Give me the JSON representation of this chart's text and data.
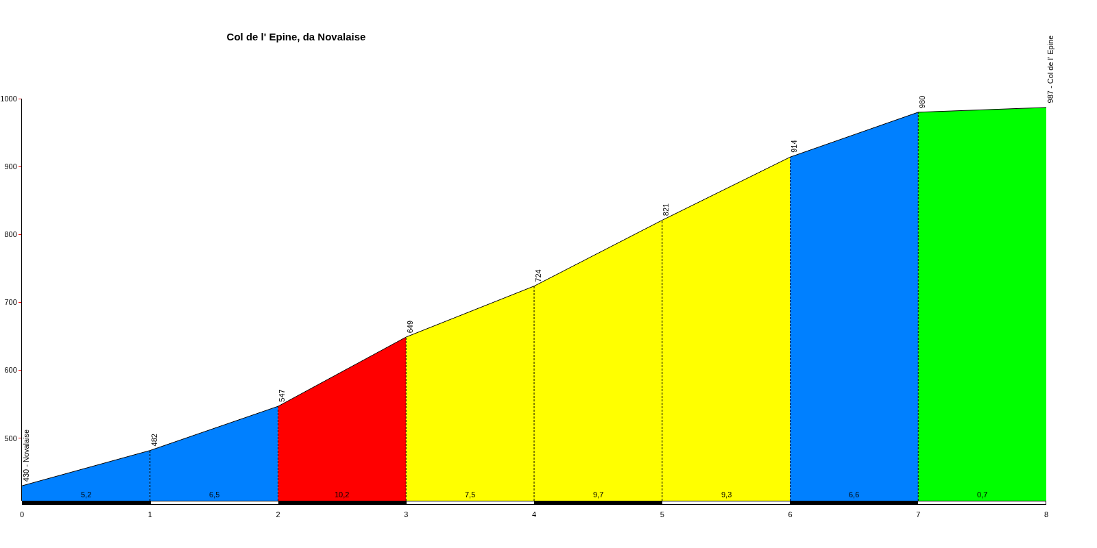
{
  "chart_data": {
    "type": "area",
    "title": "Col de l' Epine, da Novalaise",
    "xlim": [
      0,
      8
    ],
    "xticks": [
      0,
      1,
      2,
      3,
      4,
      5,
      6,
      7,
      8
    ],
    "ylim": [
      408,
      1000
    ],
    "yticks": [
      500,
      600,
      700,
      800,
      900,
      1000
    ],
    "grid": false,
    "series": [
      {
        "color": "#0080ff",
        "x": [
          0,
          1
        ],
        "values": [
          430,
          482
        ]
      },
      {
        "color": "#0080ff",
        "x": [
          1,
          2
        ],
        "values": [
          482,
          547
        ]
      },
      {
        "color": "#ff0000",
        "x": [
          2,
          3
        ],
        "values": [
          547,
          649
        ]
      },
      {
        "color": "#ffff00",
        "x": [
          3,
          4
        ],
        "values": [
          649,
          724
        ]
      },
      {
        "color": "#ffff00",
        "x": [
          4,
          5
        ],
        "values": [
          724,
          821
        ]
      },
      {
        "color": "#ffff00",
        "x": [
          5,
          6
        ],
        "values": [
          821,
          914
        ]
      },
      {
        "color": "#0080ff",
        "x": [
          6,
          7
        ],
        "values": [
          914,
          980
        ]
      },
      {
        "color": "#00ff00",
        "x": [
          7,
          8
        ],
        "values": [
          980,
          987
        ]
      }
    ],
    "ref_lines": [
      {
        "axis": "x",
        "value": 1,
        "line_style": "dashed",
        "color": "#000000"
      },
      {
        "axis": "x",
        "value": 2,
        "line_style": "dashed",
        "color": "#000000"
      },
      {
        "axis": "x",
        "value": 3,
        "line_style": "dashed",
        "color": "#000000"
      },
      {
        "axis": "x",
        "value": 4,
        "line_style": "dashed",
        "color": "#000000"
      },
      {
        "axis": "x",
        "value": 5,
        "line_style": "dashed",
        "color": "#000000"
      },
      {
        "axis": "x",
        "value": 6,
        "line_style": "dashed",
        "color": "#000000"
      },
      {
        "axis": "x",
        "value": 7,
        "line_style": "dashed",
        "color": "#000000"
      }
    ],
    "annotations": [
      {
        "text": "430 - Novalaise",
        "x": 0,
        "y": 430
      },
      {
        "text": "482",
        "x": 1,
        "y": 482
      },
      {
        "text": "547",
        "x": 2,
        "y": 547
      },
      {
        "text": "649",
        "x": 3,
        "y": 649
      },
      {
        "text": "724",
        "x": 4,
        "y": 724
      },
      {
        "text": "821",
        "x": 5,
        "y": 821
      },
      {
        "text": "914",
        "x": 6,
        "y": 914
      },
      {
        "text": "980",
        "x": 7,
        "y": 980
      },
      {
        "text": "987 - Col de l' Epine",
        "x": 8,
        "y": 987
      },
      "5,2",
      "6,5",
      "10,2",
      "7,5",
      "9,7",
      "9,3",
      "6,6",
      "0,7"
    ]
  }
}
